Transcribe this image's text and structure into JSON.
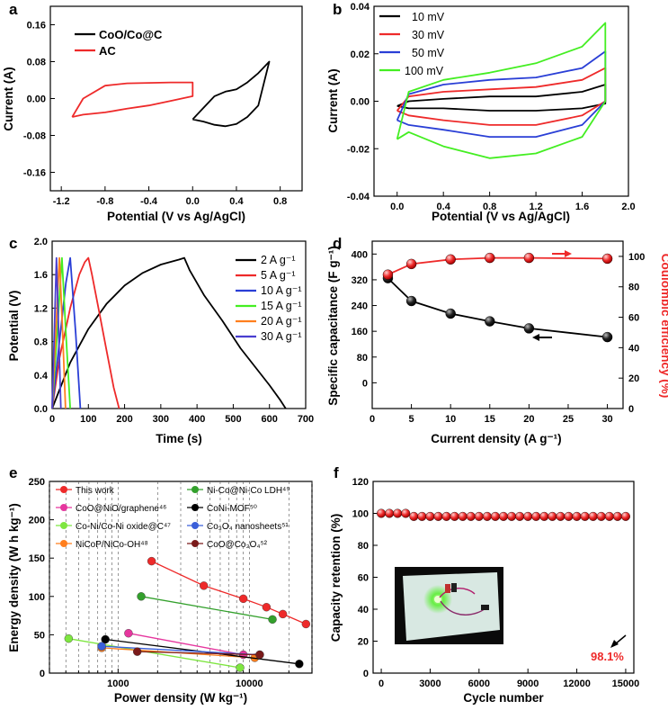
{
  "panels": {
    "a": {
      "label": "a",
      "xlabel": "Potential (V vs Ag/AgCl)",
      "ylabel": "Current (A)",
      "xlim": [
        -1.3,
        1.0
      ],
      "ylim": [
        -0.2,
        0.2
      ],
      "xticks": [
        "-1.2",
        "-0.8",
        "-0.4",
        "0.0",
        "0.4",
        "0.8"
      ],
      "yticks": [
        "-0.16",
        "-0.08",
        "0.00",
        "0.08",
        "0.16"
      ],
      "legend": [
        "CoO/Co@C",
        "AC"
      ],
      "colors": [
        "#000000",
        "#ee2a2a"
      ]
    },
    "b": {
      "label": "b",
      "xlabel": "Potential (V vs Ag/AgCl)",
      "ylabel": "Current (A)",
      "xlim": [
        -0.2,
        2.0
      ],
      "ylim": [
        -0.04,
        0.04
      ],
      "xticks": [
        "0.0",
        "0.4",
        "0.8",
        "1.2",
        "1.6",
        "2.0"
      ],
      "yticks": [
        "-0.04",
        "-0.02",
        "0.00",
        "0.02",
        "0.04"
      ],
      "legend": [
        "10 mV",
        "30 mV",
        "50 mV",
        "100 mV"
      ],
      "colors": [
        "#000000",
        "#ee2a2a",
        "#2a3fd6",
        "#44ee22"
      ]
    },
    "c": {
      "label": "c",
      "xlabel": "Time (s)",
      "ylabel": "Potential (V)",
      "xlim": [
        0,
        700
      ],
      "ylim": [
        0.0,
        2.0
      ],
      "xticks": [
        "0",
        "100",
        "200",
        "300",
        "400",
        "500",
        "600",
        "700"
      ],
      "yticks": [
        "0.0",
        "0.4",
        "0.8",
        "1.2",
        "1.6",
        "2.0"
      ],
      "legend": [
        "2 A g⁻¹",
        "5 A g⁻¹",
        "10 A g⁻¹",
        "15 A g⁻¹",
        "20 A g⁻¹",
        "30 A g⁻¹"
      ],
      "colors": [
        "#000000",
        "#ee2a2a",
        "#2a3fd6",
        "#44ee22",
        "#ff7f1e",
        "#4a3fd0"
      ]
    },
    "d": {
      "label": "d",
      "xlabel": "Current density (A g⁻¹)",
      "ylabel": "Specific capacitance (F g⁻¹)",
      "ylabel2": "Coulombic efficiency (%)",
      "xlim": [
        0,
        32
      ],
      "ylim": [
        -80,
        440
      ],
      "ylim2": [
        0,
        110
      ],
      "xticks": [
        "0",
        "5",
        "10",
        "15",
        "20",
        "25",
        "30"
      ],
      "yticks": [
        "0",
        "80",
        "160",
        "240",
        "320",
        "400"
      ],
      "yticks2": [
        "0",
        "20",
        "40",
        "60",
        "80",
        "100"
      ]
    },
    "e": {
      "label": "e",
      "xlabel": "Power density (W kg⁻¹)",
      "ylabel": "Energy density (W h kg⁻¹)",
      "xlim": [
        300,
        30000
      ],
      "ylim": [
        0,
        250
      ],
      "xticks": [
        "1000",
        "10000"
      ],
      "yticks": [
        "0",
        "50",
        "100",
        "150",
        "200",
        "250"
      ],
      "legend": [
        "This work",
        "CoO@NiO/graphene⁴⁶",
        "Co-Ni/Co-Ni oxide@C⁴⁷",
        "NiCoP/NiCo-OH⁴⁸",
        "Ni-Co@Ni-Co LDH⁴⁹",
        "CoNi-MOF⁵⁰",
        "Co₃O₄ nanosheets⁵¹",
        "CoO@Co₃O₄⁵²"
      ]
    },
    "f": {
      "label": "f",
      "xlabel": "Cycle number",
      "ylabel": "Capacity retention (%)",
      "xlim": [
        -500,
        15500
      ],
      "ylim": [
        0,
        120
      ],
      "xticks": [
        "0",
        "3000",
        "6000",
        "9000",
        "12000",
        "15000"
      ],
      "yticks": [
        "0",
        "20",
        "40",
        "60",
        "80",
        "100",
        "120"
      ],
      "annotation": "98.1%"
    }
  },
  "chart_data": [
    {
      "id": "a",
      "type": "line",
      "title": "",
      "xlabel": "Potential (V vs Ag/AgCl)",
      "ylabel": "Current (A)",
      "xlim": [
        -1.3,
        1.0
      ],
      "ylim": [
        -0.2,
        0.2
      ],
      "series": [
        {
          "name": "CoO/Co@C",
          "color": "#000000",
          "x": [
            0.0,
            0.1,
            0.2,
            0.3,
            0.4,
            0.5,
            0.6,
            0.7,
            0.7,
            0.6,
            0.5,
            0.4,
            0.3,
            0.2,
            0.1,
            0.0
          ],
          "y": [
            -0.045,
            -0.05,
            -0.057,
            -0.06,
            -0.055,
            -0.04,
            -0.015,
            0.08,
            0.08,
            0.055,
            0.035,
            0.02,
            0.015,
            0.005,
            -0.02,
            -0.045
          ]
        },
        {
          "name": "AC",
          "color": "#ee2a2a",
          "x": [
            -1.1,
            -1.0,
            -0.8,
            -0.6,
            -0.4,
            -0.2,
            0.0,
            0.0,
            -0.2,
            -0.4,
            -0.6,
            -0.8,
            -1.0,
            -1.1
          ],
          "y": [
            -0.04,
            -0.035,
            -0.03,
            -0.022,
            -0.015,
            -0.005,
            0.005,
            0.035,
            0.035,
            0.034,
            0.033,
            0.028,
            0.0,
            -0.04
          ]
        }
      ]
    },
    {
      "id": "b",
      "type": "line",
      "title": "",
      "xlabel": "Potential (V vs Ag/AgCl)",
      "ylabel": "Current (A)",
      "xlim": [
        -0.2,
        2.0
      ],
      "ylim": [
        -0.04,
        0.04
      ],
      "series": [
        {
          "name": "10 mV",
          "color": "#000000",
          "x": [
            0.0,
            0.1,
            0.4,
            0.8,
            1.2,
            1.6,
            1.8,
            1.8,
            1.6,
            1.2,
            0.8,
            0.4,
            0.1,
            0.0
          ],
          "y": [
            -0.002,
            0.0,
            0.001,
            0.002,
            0.002,
            0.004,
            0.007,
            -0.001,
            -0.003,
            -0.004,
            -0.004,
            -0.003,
            -0.003,
            -0.002
          ]
        },
        {
          "name": "30 mV",
          "color": "#ee2a2a",
          "x": [
            0.0,
            0.1,
            0.4,
            0.8,
            1.2,
            1.6,
            1.8,
            1.8,
            1.6,
            1.2,
            0.8,
            0.4,
            0.1,
            0.0
          ],
          "y": [
            -0.004,
            0.002,
            0.004,
            0.005,
            0.006,
            0.009,
            0.014,
            0.0,
            -0.006,
            -0.01,
            -0.01,
            -0.008,
            -0.006,
            -0.004
          ]
        },
        {
          "name": "50 mV",
          "color": "#2a3fd6",
          "x": [
            0.0,
            0.1,
            0.4,
            0.8,
            1.2,
            1.6,
            1.8,
            1.8,
            1.6,
            1.2,
            0.8,
            0.4,
            0.1,
            0.0
          ],
          "y": [
            -0.008,
            0.003,
            0.007,
            0.009,
            0.01,
            0.014,
            0.021,
            0.0,
            -0.01,
            -0.015,
            -0.015,
            -0.012,
            -0.01,
            -0.008
          ]
        },
        {
          "name": "100 mV",
          "color": "#44ee22",
          "x": [
            0.0,
            0.1,
            0.4,
            0.8,
            1.2,
            1.6,
            1.8,
            1.8,
            1.6,
            1.2,
            0.8,
            0.4,
            0.1,
            0.0
          ],
          "y": [
            -0.016,
            0.004,
            0.009,
            0.012,
            0.016,
            0.023,
            0.033,
            0.0,
            -0.015,
            -0.022,
            -0.024,
            -0.019,
            -0.013,
            -0.016
          ]
        }
      ]
    },
    {
      "id": "c",
      "type": "line",
      "title": "",
      "xlabel": "Time (s)",
      "ylabel": "Potential (V)",
      "xlim": [
        0,
        700
      ],
      "ylim": [
        0.0,
        2.0
      ],
      "series": [
        {
          "name": "2 A g⁻¹",
          "color": "#000000",
          "x": [
            0,
            50,
            100,
            150,
            200,
            250,
            300,
            350,
            365,
            380,
            420,
            470,
            520,
            560,
            600,
            630,
            645
          ],
          "y": [
            0.0,
            0.55,
            0.95,
            1.25,
            1.47,
            1.62,
            1.72,
            1.78,
            1.8,
            1.65,
            1.35,
            1.05,
            0.72,
            0.5,
            0.28,
            0.1,
            0.0
          ]
        },
        {
          "name": "5 A g⁻¹",
          "color": "#ee2a2a",
          "x": [
            0,
            20,
            50,
            75,
            90,
            100,
            110,
            130,
            150,
            170,
            185
          ],
          "y": [
            0.0,
            0.6,
            1.2,
            1.6,
            1.75,
            1.8,
            1.6,
            1.15,
            0.7,
            0.25,
            0.0
          ]
        },
        {
          "name": "10 A g⁻¹",
          "color": "#2a3fd6",
          "x": [
            0,
            20,
            38,
            50,
            65,
            78
          ],
          "y": [
            0.0,
            0.8,
            1.5,
            1.8,
            0.9,
            0.0
          ]
        },
        {
          "name": "15 A g⁻¹",
          "color": "#44ee22",
          "x": [
            0,
            14,
            27,
            38,
            50
          ],
          "y": [
            0.0,
            0.9,
            1.8,
            0.9,
            0.0
          ]
        },
        {
          "name": "20 A g⁻¹",
          "color": "#ff7f1e",
          "x": [
            0,
            10,
            20,
            29,
            37
          ],
          "y": [
            0.0,
            0.9,
            1.8,
            0.9,
            0.0
          ]
        },
        {
          "name": "30 A g⁻¹",
          "color": "#4a3fd0",
          "x": [
            0,
            6,
            12,
            18,
            24
          ],
          "y": [
            0.0,
            0.9,
            1.8,
            0.9,
            0.0
          ]
        }
      ]
    },
    {
      "id": "d",
      "type": "scatter",
      "title": "",
      "xlabel": "Current density (A g⁻¹)",
      "ylabel": "Specific capacitance (F g⁻¹)",
      "ylabel2": "Coulombic efficiency (%)",
      "xlim": [
        0,
        32
      ],
      "ylim": [
        -80,
        440
      ],
      "ylim2": [
        0,
        110
      ],
      "series": [
        {
          "name": "Specific capacitance",
          "axis": "left",
          "color": "#000000",
          "x": [
            2,
            5,
            10,
            15,
            20,
            30
          ],
          "y": [
            325,
            254,
            215,
            191,
            169,
            142
          ]
        },
        {
          "name": "Coulombic efficiency",
          "axis": "right",
          "color": "#ee2a2a",
          "x": [
            2,
            5,
            10,
            15,
            20,
            30
          ],
          "y": [
            88,
            95,
            98,
            99,
            99,
            98.5
          ]
        }
      ]
    },
    {
      "id": "e",
      "type": "scatter",
      "title": "",
      "xlabel": "Power density (W kg⁻¹)",
      "ylabel": "Energy density (W h kg⁻¹)",
      "xscale": "log",
      "xlim": [
        300,
        30000
      ],
      "ylim": [
        0,
        250
      ],
      "series": [
        {
          "name": "This work",
          "color": "#ee2a2a",
          "x": [
            1800,
            4500,
            9000,
            13500,
            18000,
            27000
          ],
          "y": [
            146,
            114,
            97,
            86,
            77,
            64
          ]
        },
        {
          "name": "CoO@NiO/graphene 46",
          "color": "#e6369e",
          "x": [
            1200,
            9000
          ],
          "y": [
            52,
            24
          ]
        },
        {
          "name": "Co-Ni/Co-Ni oxide@C 47",
          "color": "#7ee640",
          "x": [
            420,
            8500
          ],
          "y": [
            45,
            7
          ]
        },
        {
          "name": "NiCoP/NiCo-OH 48",
          "color": "#ff7f1e",
          "x": [
            750,
            11000
          ],
          "y": [
            33,
            20
          ]
        },
        {
          "name": "Ni-Co@Ni-Co LDH 49",
          "color": "#33a02c",
          "x": [
            1500,
            15000
          ],
          "y": [
            100,
            70
          ]
        },
        {
          "name": "CoNi-MOF 50",
          "color": "#000000",
          "x": [
            800,
            24000
          ],
          "y": [
            44,
            12
          ]
        },
        {
          "name": "Co3O4 nanosheets 51",
          "color": "#3a5fd9",
          "x": [
            750,
            12000
          ],
          "y": [
            35,
            24
          ]
        },
        {
          "name": "CoO@Co3O4 52",
          "color": "#7a1a1a",
          "x": [
            1400,
            12000
          ],
          "y": [
            28,
            24
          ]
        }
      ]
    },
    {
      "id": "f",
      "type": "scatter",
      "title": "",
      "xlabel": "Cycle number",
      "ylabel": "Capacity retention (%)",
      "xlim": [
        -500,
        15500
      ],
      "ylim": [
        0,
        120
      ],
      "series": [
        {
          "name": "Capacity retention",
          "color": "#ee2a2a",
          "x": [
            0,
            500,
            1000,
            1500,
            2000,
            2500,
            3000,
            3500,
            4000,
            4500,
            5000,
            5500,
            6000,
            6500,
            7000,
            7500,
            8000,
            8500,
            9000,
            9500,
            10000,
            10500,
            11000,
            11500,
            12000,
            12500,
            13000,
            13500,
            14000,
            14500,
            15000
          ],
          "y": [
            100,
            100,
            100,
            100,
            98.1,
            98.1,
            98.1,
            98.1,
            98.1,
            98.1,
            98.1,
            98.1,
            98.1,
            98.1,
            98.1,
            98.1,
            98.1,
            98.1,
            98.1,
            98.1,
            98.1,
            98.1,
            98.1,
            98.1,
            98.1,
            98.1,
            98.1,
            98.1,
            98.1,
            98.1,
            98.1
          ]
        }
      ],
      "annotations": [
        "98.1%"
      ]
    }
  ]
}
